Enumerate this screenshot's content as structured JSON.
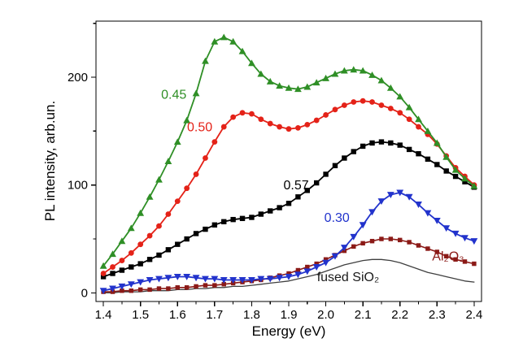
{
  "chart_data": {
    "type": "line",
    "title": "",
    "xlabel": "Energy (eV)",
    "ylabel": "PL intensity, arb.un.",
    "xlim": [
      1.38,
      2.42
    ],
    "ylim": [
      -8,
      252
    ],
    "grid": false,
    "legend": "none (inline curve labels)",
    "x_ticks_major": [
      1.4,
      1.5,
      1.6,
      1.7,
      1.8,
      1.9,
      2.0,
      2.1,
      2.2,
      2.3,
      2.4
    ],
    "x_ticks_minor": [
      1.45,
      1.55,
      1.65,
      1.75,
      1.85,
      1.95,
      2.05,
      2.15,
      2.25,
      2.35
    ],
    "y_ticks_major": [
      0,
      100,
      200
    ],
    "y_ticks_minor": [
      50,
      150,
      250
    ],
    "x": [
      1.4,
      1.425,
      1.45,
      1.475,
      1.5,
      1.525,
      1.55,
      1.575,
      1.6,
      1.625,
      1.65,
      1.675,
      1.7,
      1.725,
      1.75,
      1.775,
      1.8,
      1.825,
      1.85,
      1.875,
      1.9,
      1.925,
      1.95,
      1.975,
      2.0,
      2.025,
      2.05,
      2.075,
      2.1,
      2.125,
      2.15,
      2.175,
      2.2,
      2.225,
      2.25,
      2.275,
      2.3,
      2.325,
      2.35,
      2.375,
      2.4
    ],
    "series": [
      {
        "name": "0.45",
        "color": "#2f8f26",
        "marker": "triangle-up",
        "marker_size": 4.4,
        "line_width": 1.8,
        "values": [
          25,
          36,
          48,
          60,
          74,
          89,
          105,
          122,
          140,
          160,
          185,
          215,
          233,
          237,
          233,
          224,
          213,
          203,
          196,
          192,
          190,
          189,
          191,
          195,
          199,
          203,
          206,
          207,
          206,
          202,
          197,
          190,
          182,
          172,
          161,
          150,
          139,
          126,
          114,
          106,
          99
        ]
      },
      {
        "name": "0.50",
        "color": "#e42218",
        "marker": "circle",
        "marker_size": 4.0,
        "line_width": 1.8,
        "values": [
          18,
          24,
          30,
          37,
          45,
          53,
          62,
          73,
          85,
          97,
          110,
          125,
          140,
          154,
          163,
          167,
          166,
          161,
          157,
          154,
          152,
          153,
          156,
          160,
          165,
          170,
          174,
          177,
          178,
          177,
          174,
          171,
          167,
          161,
          154,
          147,
          138,
          127,
          116,
          108,
          100
        ]
      },
      {
        "name": "0.57",
        "color": "#000000",
        "marker": "square",
        "marker_size": 4.0,
        "line_width": 1.8,
        "values": [
          15,
          18,
          21,
          24,
          27,
          31,
          35,
          40,
          45,
          50,
          55,
          59,
          63,
          66,
          68,
          69,
          70,
          73,
          76,
          79,
          83,
          89,
          95,
          102,
          110,
          118,
          125,
          131,
          136,
          139,
          140,
          139,
          137,
          133,
          129,
          124,
          119,
          113,
          108,
          103,
          98
        ]
      },
      {
        "name": "0.30",
        "color": "#2233cc",
        "marker": "triangle-down",
        "marker_size": 4.4,
        "line_width": 1.8,
        "values": [
          2,
          4,
          6,
          8,
          10,
          12,
          13,
          14,
          15,
          15,
          14,
          13,
          13,
          12,
          12,
          12,
          12,
          13,
          13,
          14,
          15,
          17,
          20,
          24,
          28,
          34,
          42,
          52,
          63,
          75,
          85,
          91,
          93,
          89,
          82,
          74,
          67,
          60,
          55,
          51,
          48
        ]
      },
      {
        "name": "Al₂O₃",
        "color": "#8b1a17",
        "marker": "square",
        "marker_size": 3.4,
        "line_width": 1.6,
        "values": [
          1,
          1,
          2,
          2,
          3,
          3,
          4,
          4,
          5,
          5,
          6,
          7,
          7,
          8,
          9,
          10,
          11,
          12,
          14,
          16,
          18,
          21,
          24,
          27,
          31,
          35,
          39,
          43,
          46,
          48,
          50,
          50,
          49,
          47,
          44,
          41,
          38,
          34,
          31,
          29,
          27
        ]
      },
      {
        "name": "fused SiO₂",
        "color": "#3f3f3f",
        "marker": "none",
        "marker_size": 0,
        "line_width": 1.3,
        "values": [
          0,
          0,
          1,
          1,
          1,
          2,
          2,
          2,
          3,
          3,
          4,
          4,
          5,
          5,
          6,
          6,
          7,
          8,
          9,
          10,
          11,
          13,
          15,
          17,
          20,
          23,
          26,
          28,
          30,
          31,
          31,
          30,
          28,
          25,
          22,
          19,
          17,
          15,
          13,
          11,
          10
        ]
      }
    ],
    "annotations": [
      {
        "text": "0.45",
        "x": 1.59,
        "y": 180,
        "color": "#2f8f26"
      },
      {
        "text": "0.50",
        "x": 1.66,
        "y": 150,
        "color": "#e42218"
      },
      {
        "text": "0.57",
        "x": 1.92,
        "y": 96,
        "color": "#000000"
      },
      {
        "text": "0.30",
        "x": 2.03,
        "y": 66,
        "color": "#2233cc"
      },
      {
        "text": "Al₂O₃",
        "x": 2.33,
        "y": 30,
        "color": "#8b1a17"
      },
      {
        "text": "fused SiO₂",
        "x": 2.06,
        "y": 11,
        "color": "#1a1a1a"
      }
    ]
  }
}
